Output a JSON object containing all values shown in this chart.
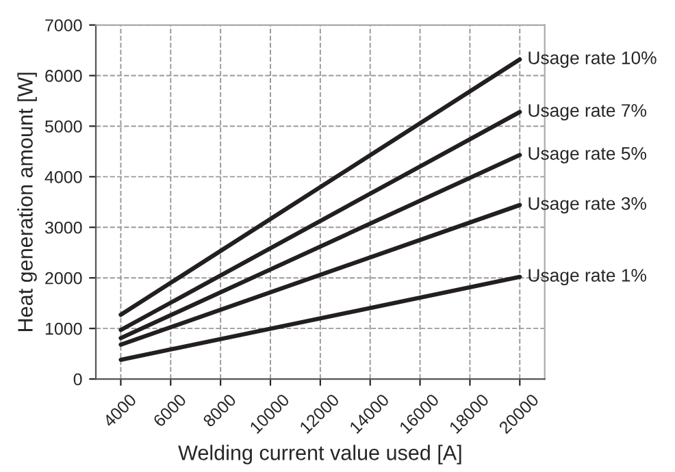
{
  "chart_data": {
    "type": "line",
    "xlabel": "Welding current value used [A]",
    "ylabel": "Heat generation amount [W]",
    "x": [
      4000,
      20000
    ],
    "series": [
      {
        "name": "Usage rate 10%",
        "color": "#231f20",
        "values": [
          1270,
          6320
        ]
      },
      {
        "name": "Usage rate 7%",
        "color": "#231f20",
        "values": [
          970,
          5280
        ]
      },
      {
        "name": "Usage rate 5%",
        "color": "#231f20",
        "values": [
          810,
          4430
        ]
      },
      {
        "name": "Usage rate 3%",
        "color": "#231f20",
        "values": [
          680,
          3440
        ]
      },
      {
        "name": "Usage rate 1%",
        "color": "#231f20",
        "values": [
          380,
          2020
        ]
      }
    ],
    "xlim": [
      3000,
      21000
    ],
    "xticks": [
      4000,
      6000,
      8000,
      10000,
      12000,
      14000,
      16000,
      18000,
      20000
    ],
    "ylim": [
      0,
      7000
    ],
    "yticks": [
      0,
      1000,
      2000,
      3000,
      4000,
      5000,
      6000,
      7000
    ],
    "grid": true,
    "legend": false,
    "marker": "none",
    "line_style": "solid"
  }
}
